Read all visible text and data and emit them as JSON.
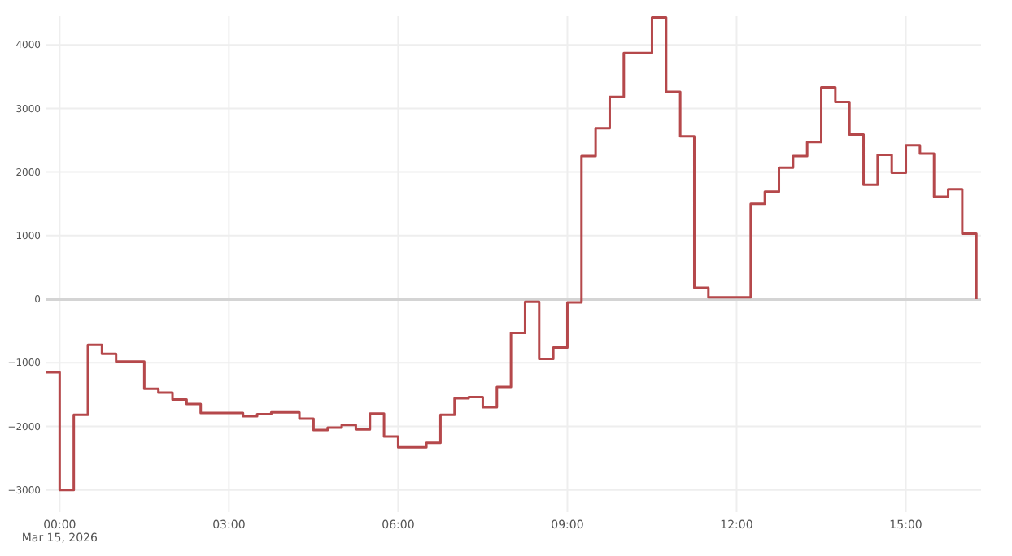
{
  "chart_data": {
    "type": "step",
    "grid": true,
    "line_style": "solid",
    "marker": "none",
    "x": [
      "2026-03-14T23:45",
      "2026-03-15T00:00",
      "2026-03-15T00:15",
      "2026-03-15T00:30",
      "2026-03-15T00:45",
      "2026-03-15T01:00",
      "2026-03-15T01:30",
      "2026-03-15T01:45",
      "2026-03-15T02:00",
      "2026-03-15T02:15",
      "2026-03-15T02:30",
      "2026-03-15T03:15",
      "2026-03-15T03:30",
      "2026-03-15T03:45",
      "2026-03-15T04:15",
      "2026-03-15T04:30",
      "2026-03-15T04:45",
      "2026-03-15T05:00",
      "2026-03-15T05:15",
      "2026-03-15T05:30",
      "2026-03-15T05:45",
      "2026-03-15T06:00",
      "2026-03-15T06:30",
      "2026-03-15T06:45",
      "2026-03-15T07:00",
      "2026-03-15T07:15",
      "2026-03-15T07:30",
      "2026-03-15T07:45",
      "2026-03-15T08:00",
      "2026-03-15T08:15",
      "2026-03-15T08:30",
      "2026-03-15T08:45",
      "2026-03-15T09:00",
      "2026-03-15T09:15",
      "2026-03-15T09:30",
      "2026-03-15T09:45",
      "2026-03-15T10:00",
      "2026-03-15T10:30",
      "2026-03-15T10:45",
      "2026-03-15T11:00",
      "2026-03-15T11:15",
      "2026-03-15T11:30",
      "2026-03-15T12:15",
      "2026-03-15T12:30",
      "2026-03-15T12:45",
      "2026-03-15T13:00",
      "2026-03-15T13:15",
      "2026-03-15T13:30",
      "2026-03-15T13:45",
      "2026-03-15T14:00",
      "2026-03-15T14:15",
      "2026-03-15T14:30",
      "2026-03-15T14:45",
      "2026-03-15T15:00",
      "2026-03-15T15:15",
      "2026-03-15T15:30",
      "2026-03-15T15:45",
      "2026-03-15T16:00",
      "2026-03-15T16:15"
    ],
    "series": [
      {
        "color": "#b5484b",
        "values": [
          -1150,
          -3000,
          -1820,
          -720,
          -860,
          -980,
          -1410,
          -1470,
          -1580,
          -1650,
          -1790,
          -1840,
          -1810,
          -1780,
          -1880,
          -2060,
          -2020,
          -1980,
          -2050,
          -1800,
          -2160,
          -2330,
          -2260,
          -1820,
          -1560,
          -1540,
          -1700,
          -1380,
          -530,
          -40,
          -940,
          -760,
          -50,
          2250,
          2690,
          3180,
          3870,
          4430,
          3260,
          2560,
          180,
          30,
          1500,
          1690,
          2070,
          2250,
          2470,
          3330,
          3100,
          2590,
          1800,
          2270,
          1990,
          2420,
          2290,
          1610,
          1730,
          1030,
          0
        ]
      }
    ],
    "xlim": [
      "2026-03-14T23:45",
      "2026-03-15T16:20"
    ],
    "xticks": [
      {
        "value": "2026-03-15T00:00",
        "label": "00:00\nMar 15, 2026"
      },
      {
        "value": "2026-03-15T03:00",
        "label": "03:00"
      },
      {
        "value": "2026-03-15T06:00",
        "label": "06:00"
      },
      {
        "value": "2026-03-15T09:00",
        "label": "09:00"
      },
      {
        "value": "2026-03-15T12:00",
        "label": "12:00"
      },
      {
        "value": "2026-03-15T15:00",
        "label": "15:00"
      }
    ],
    "ylim": [
      -3350,
      4450
    ],
    "yticks": [
      {
        "value": -3000,
        "label": "−3000"
      },
      {
        "value": -2000,
        "label": "−2000"
      },
      {
        "value": -1000,
        "label": "−1000"
      },
      0,
      1000,
      2000,
      3000,
      4000
    ],
    "ref_lines": [
      {
        "axis": "y",
        "value": 0,
        "color": "#d4d4d4"
      }
    ]
  }
}
